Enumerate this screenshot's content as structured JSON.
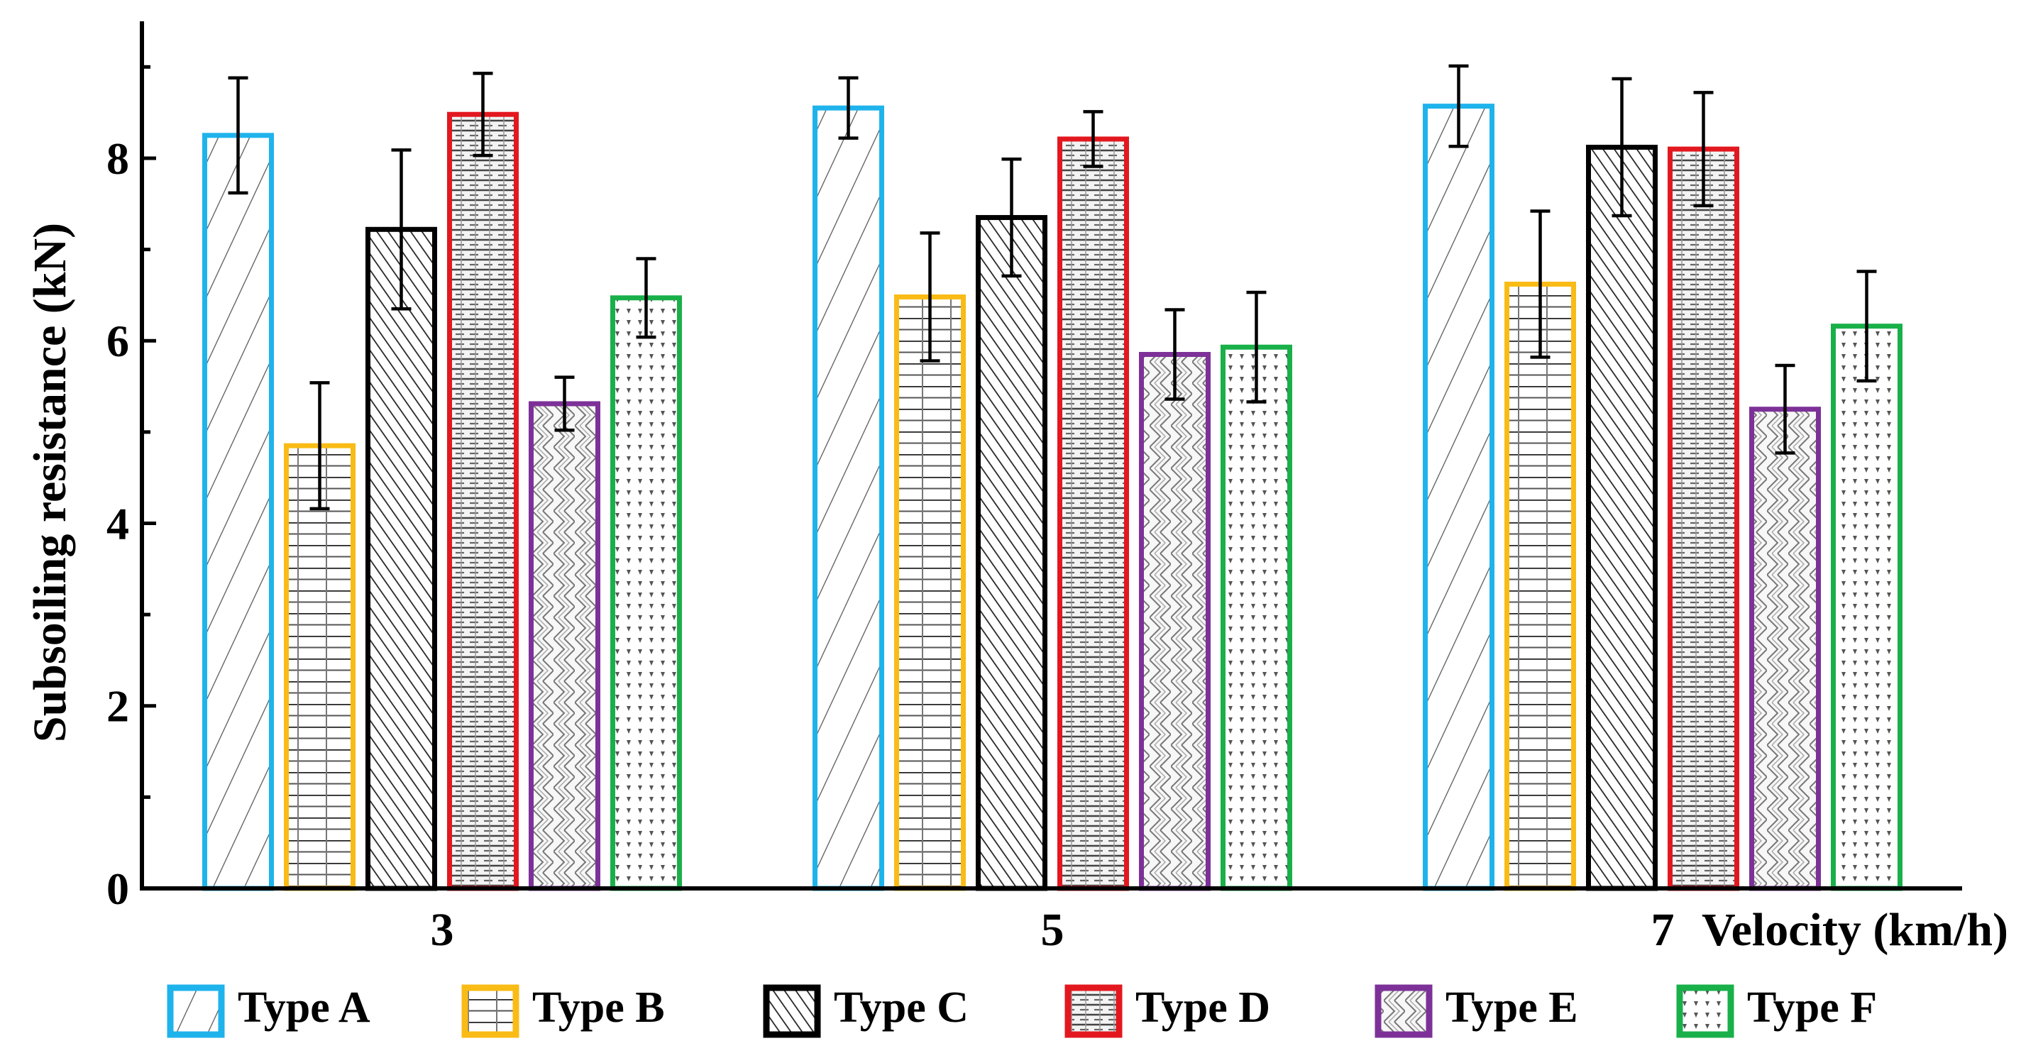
{
  "chart_data": {
    "type": "bar",
    "title": "",
    "xlabel": "Velocity (km/h)",
    "ylabel": "Subsoiling resistance (kN)",
    "ylim": [
      0,
      9.5
    ],
    "yticks": [
      0,
      2,
      4,
      6,
      8
    ],
    "categories": [
      "3",
      "5",
      "7"
    ],
    "legend_position": "bottom",
    "series": [
      {
        "name": "Type A",
        "color": "#1fb3ec",
        "pattern": "diag-wide",
        "values": [
          8.25,
          8.55,
          8.57
        ],
        "errors": [
          0.63,
          0.33,
          0.44
        ]
      },
      {
        "name": "Type B",
        "color": "#f9bb15",
        "pattern": "brick",
        "values": [
          4.85,
          6.48,
          6.62
        ],
        "errors": [
          0.69,
          0.7,
          0.8
        ]
      },
      {
        "name": "Type C",
        "color": "#000000",
        "pattern": "diag-dense",
        "values": [
          7.22,
          7.35,
          8.12
        ],
        "errors": [
          0.87,
          0.64,
          0.75
        ]
      },
      {
        "name": "Type D",
        "color": "#e3181f",
        "pattern": "dash-grid",
        "values": [
          8.48,
          8.21,
          8.1
        ],
        "errors": [
          0.45,
          0.3,
          0.62
        ]
      },
      {
        "name": "Type E",
        "color": "#7d3198",
        "pattern": "weave",
        "values": [
          5.31,
          5.85,
          5.25
        ],
        "errors": [
          0.29,
          0.49,
          0.48
        ]
      },
      {
        "name": "Type F",
        "color": "#19b04a",
        "pattern": "dots",
        "values": [
          6.47,
          5.93,
          6.16
        ],
        "errors": [
          0.43,
          0.6,
          0.6
        ]
      }
    ]
  }
}
